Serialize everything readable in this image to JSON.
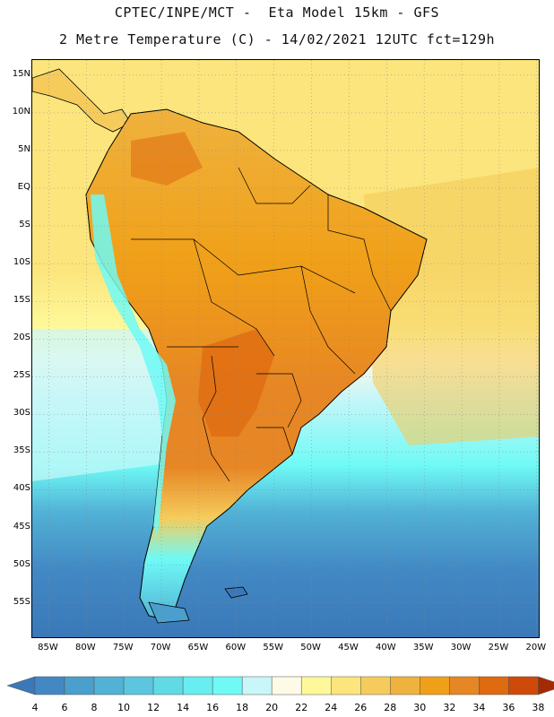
{
  "header": {
    "line1": "CPTEC/INPE/MCT -  Eta Model 15km - GFS",
    "line2": "2 Metre Temperature (C) - 14/02/2021 12UTC fct=129h"
  },
  "map": {
    "lat_labels": [
      "15N",
      "10N",
      "5N",
      "EQ",
      "5S",
      "10S",
      "15S",
      "20S",
      "25S",
      "30S",
      "35S",
      "40S",
      "45S",
      "50S",
      "55S"
    ],
    "lon_labels": [
      "85W",
      "80W",
      "75W",
      "70W",
      "65W",
      "60W",
      "55W",
      "50W",
      "45W",
      "40W",
      "35W",
      "30W",
      "25W",
      "20W"
    ],
    "lat_values": [
      15,
      10,
      5,
      0,
      -5,
      -10,
      -15,
      -20,
      -25,
      -30,
      -35,
      -40,
      -45,
      -50,
      -55
    ],
    "lon_values": [
      -85,
      -80,
      -75,
      -70,
      -65,
      -60,
      -55,
      -50,
      -45,
      -40,
      -35,
      -30,
      -25,
      -20
    ]
  },
  "legend": {
    "labels": [
      "4",
      "6",
      "8",
      "10",
      "12",
      "14",
      "16",
      "18",
      "20",
      "22",
      "24",
      "26",
      "28",
      "30",
      "32",
      "34",
      "36",
      "38"
    ],
    "colors": [
      "#3a78b8",
      "#4289c4",
      "#4a9fcc",
      "#52b2d6",
      "#5bc6de",
      "#62dae6",
      "#68eef0",
      "#6ffaf6",
      "#c9f6f8",
      "#fdfae6",
      "#fef89a",
      "#fbe57c",
      "#f5cc5c",
      "#efb23e",
      "#f0a018",
      "#e78624",
      "#df6a10",
      "#cf4a08",
      "#b83408",
      "#a42a02"
    ]
  }
}
